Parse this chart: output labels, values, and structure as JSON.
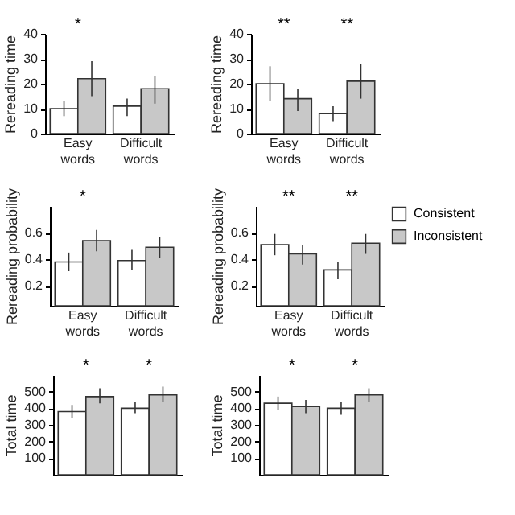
{
  "chart_data": [
    {
      "type": "bar",
      "ylabel": "Rereading time",
      "categories": [
        "Easy words",
        "Difficult words"
      ],
      "series": [
        {
          "color": "#ffffff",
          "values": [
            10,
            11
          ],
          "errors": [
            [
              7,
              13
            ],
            [
              7,
              14
            ]
          ]
        },
        {
          "color": "#c8c8c8",
          "values": [
            22,
            18
          ],
          "errors": [
            [
              15,
              29
            ],
            [
              12,
              23
            ]
          ]
        }
      ],
      "ylim": [
        0,
        40
      ],
      "yticks": [
        0,
        10,
        20,
        30,
        40
      ],
      "annotations": [
        "*"
      ]
    },
    {
      "type": "bar",
      "ylabel": "Rereading time",
      "categories": [
        "Easy words",
        "Difficult words"
      ],
      "series": [
        {
          "color": "#ffffff",
          "values": [
            20,
            8
          ],
          "errors": [
            [
              13,
              27
            ],
            [
              5,
              11
            ]
          ]
        },
        {
          "color": "#c8c8c8",
          "values": [
            14,
            21
          ],
          "errors": [
            [
              9,
              18
            ],
            [
              14,
              28
            ]
          ]
        }
      ],
      "ylim": [
        0,
        40
      ],
      "yticks": [
        0,
        10,
        20,
        30,
        40
      ],
      "annotations": [
        "**",
        "**"
      ]
    },
    {
      "type": "bar",
      "ylabel": "Rereading probability",
      "categories": [
        "Easy words",
        "Difficult words"
      ],
      "series": [
        {
          "color": "#ffffff",
          "values": [
            0.38,
            0.39
          ],
          "errors": [
            [
              0.31,
              0.45
            ],
            [
              0.32,
              0.47
            ]
          ]
        },
        {
          "color": "#c8c8c8",
          "values": [
            0.54,
            0.49
          ],
          "errors": [
            [
              0.46,
              0.62
            ],
            [
              0.41,
              0.57
            ]
          ]
        }
      ],
      "ylim": [
        0.05,
        0.8
      ],
      "yticks": [
        0.2,
        0.4,
        0.6
      ],
      "annotations": [
        "*"
      ]
    },
    {
      "type": "bar",
      "ylabel": "Rereading probability",
      "categories": [
        "Easy words",
        "Difficult words"
      ],
      "series": [
        {
          "name": "Consistent",
          "color": "#ffffff",
          "values": [
            0.51,
            0.32
          ],
          "errors": [
            [
              0.43,
              0.59
            ],
            [
              0.25,
              0.38
            ]
          ]
        },
        {
          "name": "Inconsistent",
          "color": "#c8c8c8",
          "values": [
            0.44,
            0.52
          ],
          "errors": [
            [
              0.36,
              0.51
            ],
            [
              0.44,
              0.59
            ]
          ]
        }
      ],
      "ylim": [
        0.05,
        0.8
      ],
      "yticks": [
        0.2,
        0.4,
        0.6
      ],
      "annotations": [
        "**",
        "**"
      ],
      "legend": "right"
    },
    {
      "type": "bar",
      "ylabel": "Total time",
      "categories": [
        null,
        null
      ],
      "series": [
        {
          "color": "#ffffff",
          "values": [
            380,
            400
          ],
          "errors": [
            [
              340,
              420
            ],
            [
              370,
              440
            ]
          ]
        },
        {
          "color": "#c8c8c8",
          "values": [
            470,
            480
          ],
          "errors": [
            [
              430,
              520
            ],
            [
              440,
              530
            ]
          ]
        }
      ],
      "ylim": [
        0,
        600
      ],
      "yticks": [
        100,
        200,
        300,
        400,
        500
      ],
      "annotations": [
        "*",
        "*"
      ]
    },
    {
      "type": "bar",
      "ylabel": "Total time",
      "categories": [
        null,
        null
      ],
      "series": [
        {
          "color": "#ffffff",
          "values": [
            430,
            400
          ],
          "errors": [
            [
              390,
              470
            ],
            [
              360,
              440
            ]
          ]
        },
        {
          "color": "#c8c8c8",
          "values": [
            410,
            480
          ],
          "errors": [
            [
              370,
              450
            ],
            [
              440,
              520
            ]
          ]
        }
      ],
      "ylim": [
        0,
        600
      ],
      "yticks": [
        100,
        200,
        300,
        400,
        500
      ],
      "annotations": [
        "*",
        "*"
      ]
    }
  ]
}
